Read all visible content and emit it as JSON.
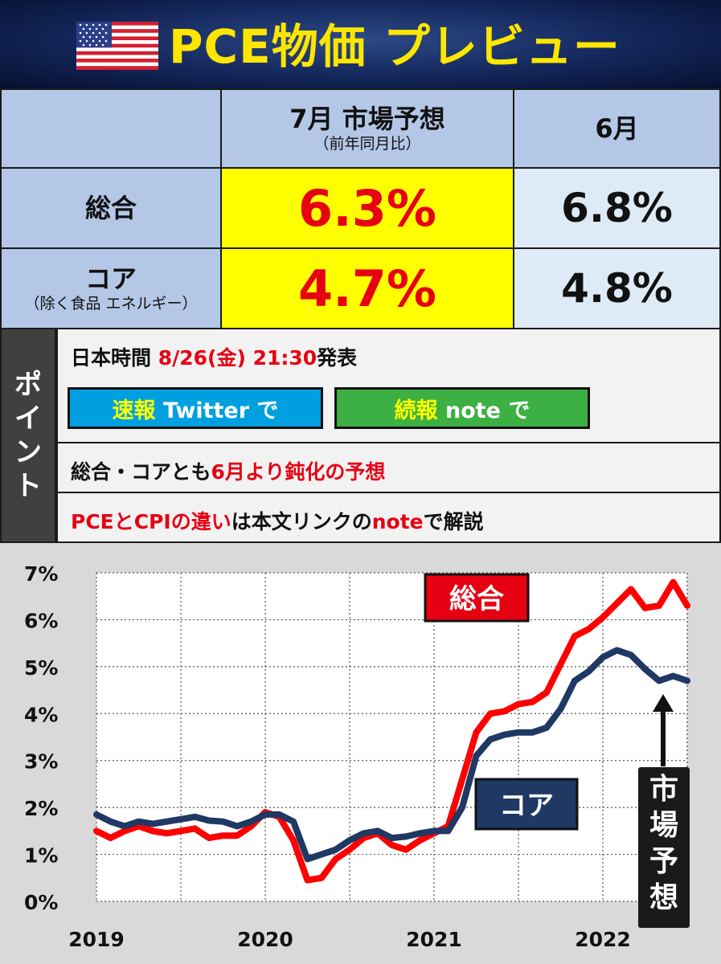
{
  "header": {
    "title": "PCE物価 プレビュー",
    "flag_icon": "us-flag-icon"
  },
  "table": {
    "col_forecast": "7月 市場予想",
    "col_forecast_sub": "（前年同月比）",
    "col_prev": "6月",
    "rows": [
      {
        "label": "総合",
        "sub": "",
        "forecast": "6.3%",
        "prev": "6.8%"
      },
      {
        "label": "コア",
        "sub": "（除く食品 エネルギー）",
        "forecast": "4.7%",
        "prev": "4.8%"
      }
    ]
  },
  "points": {
    "side_label": [
      "ポ",
      "イ",
      "ン",
      "ト"
    ],
    "release_prefix": "日本時間 ",
    "release_time": "8/26(金) 21:30",
    "release_suffix": "発表",
    "btn_twitter_a": "速報",
    "btn_twitter_b": " Twitter で",
    "btn_note_a": "続報",
    "btn_note_b": " note で",
    "line2_a": "総合・コアとも",
    "line2_b": "6月より鈍化の予想",
    "line3_a": "PCEとCPIの違い",
    "line3_b": "は本文リンクの",
    "line3_c": "note",
    "line3_d": "で解説"
  },
  "colors": {
    "headline": "#ff0000",
    "core": "#1f3864",
    "twitter_btn": "#00a0e0",
    "note_btn": "#3cb043",
    "forecast_bg": "#ffff00",
    "table_header_bg": "#b4c7e7"
  },
  "chart_data": {
    "type": "line",
    "x": [
      "2019-01",
      "2019-02",
      "2019-03",
      "2019-04",
      "2019-05",
      "2019-06",
      "2019-07",
      "2019-08",
      "2019-09",
      "2019-10",
      "2019-11",
      "2019-12",
      "2020-01",
      "2020-02",
      "2020-03",
      "2020-04",
      "2020-05",
      "2020-06",
      "2020-07",
      "2020-08",
      "2020-09",
      "2020-10",
      "2020-11",
      "2020-12",
      "2021-01",
      "2021-02",
      "2021-03",
      "2021-04",
      "2021-05",
      "2021-06",
      "2021-07",
      "2021-08",
      "2021-09",
      "2021-10",
      "2021-11",
      "2021-12",
      "2022-01",
      "2022-02",
      "2022-03",
      "2022-04",
      "2022-05",
      "2022-06",
      "2022-07"
    ],
    "series": [
      {
        "name": "総合",
        "values": [
          1.5,
          1.35,
          1.5,
          1.6,
          1.5,
          1.45,
          1.5,
          1.55,
          1.35,
          1.4,
          1.4,
          1.6,
          1.9,
          1.8,
          1.3,
          0.45,
          0.5,
          0.9,
          1.1,
          1.35,
          1.45,
          1.2,
          1.1,
          1.3,
          1.45,
          1.6,
          2.6,
          3.6,
          4.0,
          4.05,
          4.2,
          4.25,
          4.45,
          5.05,
          5.65,
          5.8,
          6.05,
          6.35,
          6.65,
          6.25,
          6.3,
          6.8,
          6.3
        ]
      },
      {
        "name": "コア",
        "values": [
          1.85,
          1.7,
          1.6,
          1.7,
          1.65,
          1.7,
          1.75,
          1.8,
          1.72,
          1.7,
          1.6,
          1.7,
          1.85,
          1.85,
          1.7,
          0.9,
          1.0,
          1.1,
          1.3,
          1.45,
          1.5,
          1.35,
          1.38,
          1.45,
          1.5,
          1.5,
          2.0,
          3.1,
          3.45,
          3.55,
          3.6,
          3.6,
          3.7,
          4.1,
          4.7,
          4.9,
          5.2,
          5.35,
          5.25,
          4.95,
          4.7,
          4.8,
          4.7
        ]
      }
    ],
    "yticks": [
      "0%",
      "1%",
      "2%",
      "3%",
      "4%",
      "5%",
      "6%",
      "7%"
    ],
    "xticks": [
      {
        "label": "2019",
        "x": "2019-01"
      },
      {
        "label": "2020",
        "x": "2020-01"
      },
      {
        "label": "2021",
        "x": "2021-01"
      },
      {
        "label": "2022",
        "x": "2022-01"
      }
    ],
    "ylim": [
      0,
      7
    ],
    "grid": true,
    "labels": {
      "headline": "総合",
      "core": "コア",
      "forecast_note": [
        "市",
        "場",
        "予",
        "想"
      ]
    }
  }
}
